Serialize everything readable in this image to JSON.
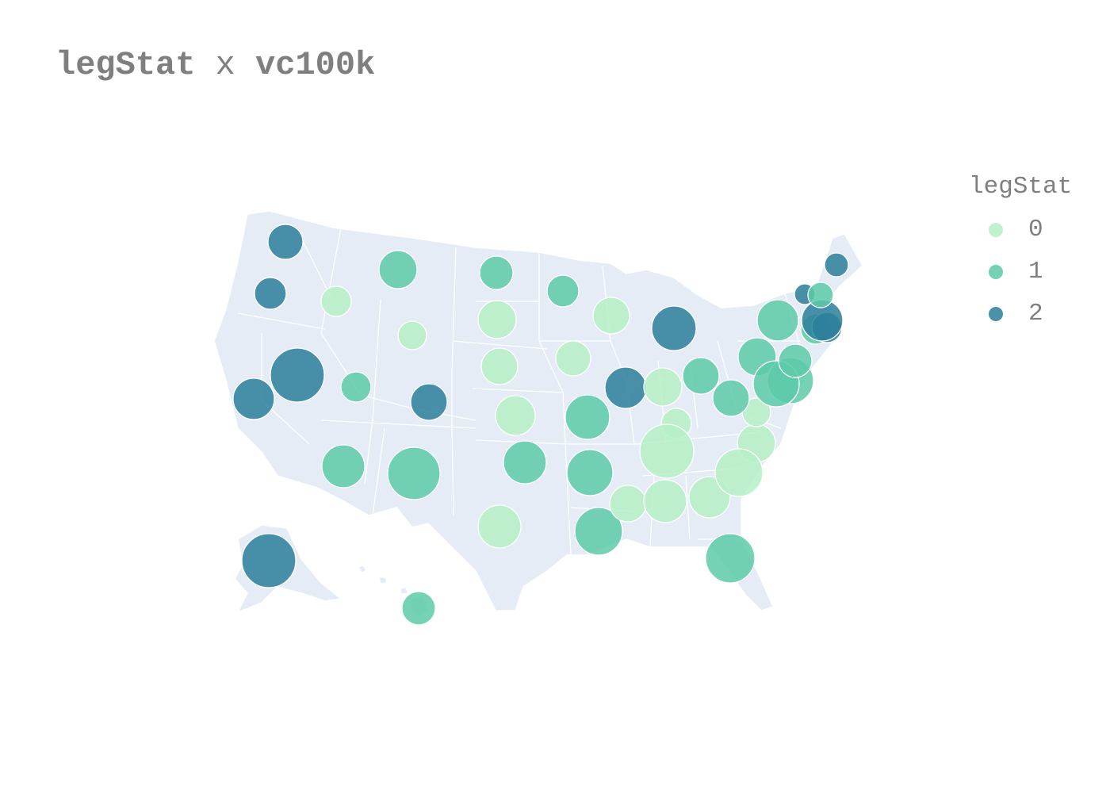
{
  "title": {
    "part1": "legStat",
    "part2": " x ",
    "part3": "vc100k"
  },
  "legend": {
    "title": "legStat",
    "items": [
      {
        "label": "0",
        "color": "#b6f0c6"
      },
      {
        "label": "1",
        "color": "#5dcaa8"
      },
      {
        "label": "2",
        "color": "#2c7f9a"
      }
    ]
  },
  "colors": {
    "land": "#e5ecf6",
    "border": "#ffffff"
  },
  "chart_data": {
    "type": "scatter",
    "subtype": "bubble-map",
    "scope": "usa",
    "color_field": "legStat",
    "size_field": "vc100k",
    "points": [
      {
        "state": "WA",
        "legStat": 2
      },
      {
        "state": "OR",
        "legStat": 2
      },
      {
        "state": "CA",
        "legStat": 2
      },
      {
        "state": "NV",
        "legStat": 2
      },
      {
        "state": "ID",
        "legStat": 0
      },
      {
        "state": "MT",
        "legStat": 1
      },
      {
        "state": "WY",
        "legStat": 0
      },
      {
        "state": "UT",
        "legStat": 1
      },
      {
        "state": "CO",
        "legStat": 2
      },
      {
        "state": "AZ",
        "legStat": 1
      },
      {
        "state": "NM",
        "legStat": 1
      },
      {
        "state": "ND",
        "legStat": 1
      },
      {
        "state": "SD",
        "legStat": 0
      },
      {
        "state": "NE",
        "legStat": 0
      },
      {
        "state": "KS",
        "legStat": 0
      },
      {
        "state": "OK",
        "legStat": 1
      },
      {
        "state": "TX",
        "legStat": 0
      },
      {
        "state": "MN",
        "legStat": 1
      },
      {
        "state": "IA",
        "legStat": 0
      },
      {
        "state": "MO",
        "legStat": 1
      },
      {
        "state": "AR",
        "legStat": 1
      },
      {
        "state": "LA",
        "legStat": 1
      },
      {
        "state": "WI",
        "legStat": 0
      },
      {
        "state": "IL",
        "legStat": 2
      },
      {
        "state": "MI",
        "legStat": 2
      },
      {
        "state": "IN",
        "legStat": 0
      },
      {
        "state": "OH",
        "legStat": 1
      },
      {
        "state": "KY",
        "legStat": 0
      },
      {
        "state": "TN",
        "legStat": 0
      },
      {
        "state": "MS",
        "legStat": 0
      },
      {
        "state": "AL",
        "legStat": 0
      },
      {
        "state": "GA",
        "legStat": 0
      },
      {
        "state": "FL",
        "legStat": 1
      },
      {
        "state": "SC",
        "legStat": 0
      },
      {
        "state": "NC",
        "legStat": 0
      },
      {
        "state": "VA",
        "legStat": 0
      },
      {
        "state": "WV",
        "legStat": 1
      },
      {
        "state": "PA",
        "legStat": 1
      },
      {
        "state": "NY",
        "legStat": 1
      },
      {
        "state": "NJ",
        "legStat": 1
      },
      {
        "state": "MD",
        "legStat": 1
      },
      {
        "state": "DE",
        "legStat": 1
      },
      {
        "state": "CT",
        "legStat": 1
      },
      {
        "state": "RI",
        "legStat": 2
      },
      {
        "state": "MA",
        "legStat": 2
      },
      {
        "state": "VT",
        "legStat": 2
      },
      {
        "state": "NH",
        "legStat": 1
      },
      {
        "state": "ME",
        "legStat": 2
      },
      {
        "state": "AK",
        "legStat": 2
      },
      {
        "state": "HI",
        "legStat": 1
      }
    ]
  }
}
